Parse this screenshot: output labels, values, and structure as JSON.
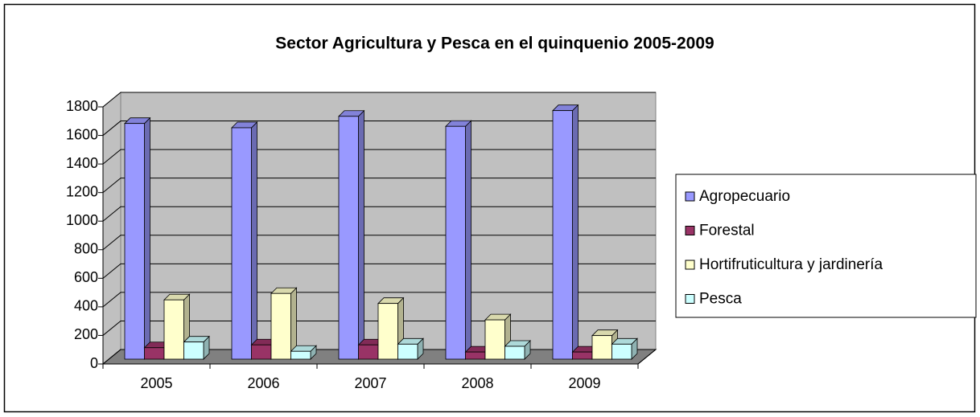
{
  "chart_data": {
    "type": "bar3d",
    "title": "Sector Agricultura y Pesca en el quinquenio 2005-2009",
    "categories": [
      "2005",
      "2006",
      "2007",
      "2008",
      "2009"
    ],
    "series": [
      {
        "name": "Agropecuario",
        "color": "#9999ff",
        "values": [
          1650,
          1620,
          1700,
          1630,
          1740
        ]
      },
      {
        "name": "Forestal",
        "color": "#993366",
        "values": [
          80,
          100,
          100,
          50,
          50
        ]
      },
      {
        "name": "Hortifruticultura y jardinería",
        "color": "#ffffcc",
        "values": [
          415,
          460,
          390,
          275,
          165
        ]
      },
      {
        "name": "Pesca",
        "color": "#ccffff",
        "values": [
          120,
          55,
          105,
          90,
          105
        ]
      }
    ],
    "ylim": [
      0,
      1800
    ],
    "yticks": [
      0,
      200,
      400,
      600,
      800,
      1000,
      1200,
      1400,
      1600,
      1800
    ],
    "grid": true,
    "legend": "right"
  }
}
